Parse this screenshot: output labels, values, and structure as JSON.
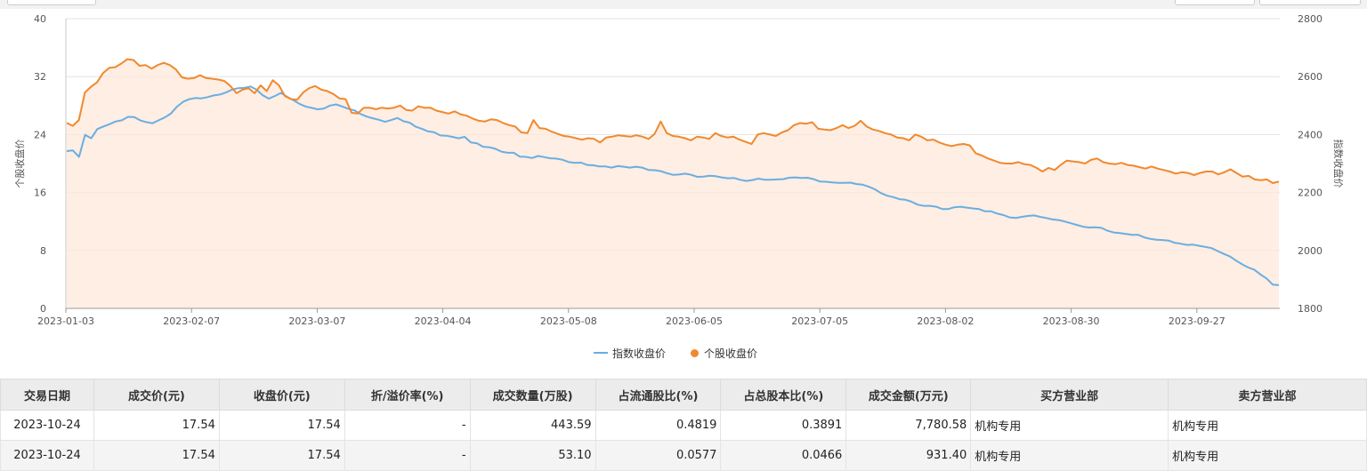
{
  "chart_data": {
    "type": "line",
    "x_ticks": [
      "2023-01-03",
      "2023-02-07",
      "2023-03-07",
      "2023-04-04",
      "2023-05-08",
      "2023-06-05",
      "2023-07-05",
      "2023-08-02",
      "2023-08-30",
      "2023-09-27"
    ],
    "left_axis": {
      "label": "个股收盘价",
      "ticks": [
        "0",
        "8",
        "16",
        "24",
        "32",
        "40"
      ],
      "ylim": [
        0,
        40
      ]
    },
    "right_axis": {
      "label": "指数收盘价",
      "ticks": [
        "1800",
        "2000",
        "2200",
        "2400",
        "2600",
        "2800"
      ],
      "ylim": [
        1800,
        2800
      ]
    },
    "series": [
      {
        "name": "指数收盘价",
        "axis": "right",
        "color": "#6aaee0",
        "values": [
          2343,
          2345,
          2323,
          2399,
          2387,
          2419,
          2428,
          2436,
          2445,
          2449,
          2461,
          2460,
          2449,
          2443,
          2439,
          2449,
          2459,
          2472,
          2496,
          2513,
          2522,
          2526,
          2525,
          2529,
          2535,
          2538,
          2545,
          2555,
          2560,
          2561,
          2566,
          2555,
          2536,
          2524,
          2533,
          2544,
          2530,
          2519,
          2506,
          2497,
          2492,
          2487,
          2490,
          2500,
          2504,
          2497,
          2489,
          2483,
          2471,
          2462,
          2456,
          2451,
          2444,
          2450,
          2457,
          2446,
          2441,
          2427,
          2420,
          2411,
          2408,
          2397,
          2396,
          2392,
          2387,
          2392,
          2373,
          2370,
          2358,
          2356,
          2351,
          2341,
          2337,
          2337,
          2324,
          2323,
          2319,
          2326,
          2322,
          2318,
          2317,
          2313,
          2305,
          2302,
          2303,
          2295,
          2294,
          2290,
          2290,
          2286,
          2291,
          2289,
          2286,
          2289,
          2286,
          2278,
          2277,
          2274,
          2267,
          2261,
          2262,
          2265,
          2261,
          2254,
          2255,
          2258,
          2256,
          2252,
          2249,
          2250,
          2244,
          2240,
          2243,
          2248,
          2244,
          2244,
          2245,
          2246,
          2251,
          2252,
          2250,
          2251,
          2246,
          2238,
          2237,
          2235,
          2233,
          2233,
          2234,
          2229,
          2227,
          2220,
          2211,
          2198,
          2189,
          2184,
          2177,
          2175,
          2168,
          2158,
          2154,
          2154,
          2151,
          2143,
          2143,
          2149,
          2151,
          2148,
          2145,
          2143,
          2135,
          2135,
          2127,
          2122,
          2114,
          2112,
          2116,
          2119,
          2121,
          2116,
          2112,
          2107,
          2105,
          2100,
          2094,
          2088,
          2082,
          2079,
          2080,
          2078,
          2068,
          2062,
          2060,
          2057,
          2054,
          2054,
          2045,
          2040,
          2037,
          2036,
          2034,
          2026,
          2023,
          2019,
          2020,
          2016,
          2012,
          2008,
          1998,
          1988,
          1979,
          1965,
          1952,
          1941,
          1933,
          1917,
          1903,
          1882,
          1880
        ]
      },
      {
        "name": "个股收盘价",
        "axis": "left",
        "color": "#f0892e",
        "values": [
          25.6,
          25.2,
          26.0,
          29.8,
          30.6,
          31.2,
          32.5,
          33.2,
          33.3,
          33.8,
          34.4,
          34.3,
          33.5,
          33.6,
          33.1,
          33.6,
          33.9,
          33.6,
          33.0,
          31.9,
          31.7,
          31.8,
          32.2,
          31.8,
          31.7,
          31.6,
          31.4,
          30.7,
          29.7,
          30.2,
          30.4,
          29.7,
          30.8,
          30.0,
          31.5,
          30.8,
          29.3,
          28.9,
          28.8,
          29.8,
          30.4,
          30.7,
          30.2,
          30.0,
          29.6,
          29.0,
          28.9,
          27.0,
          26.9,
          27.7,
          27.7,
          27.5,
          27.7,
          27.6,
          27.7,
          28.0,
          27.4,
          27.3,
          27.9,
          27.7,
          27.7,
          27.3,
          27.1,
          26.9,
          27.2,
          26.8,
          26.6,
          26.2,
          25.9,
          25.8,
          26.1,
          26.0,
          25.6,
          25.3,
          25.1,
          24.3,
          24.2,
          26.0,
          24.9,
          24.8,
          24.4,
          24.1,
          23.8,
          23.7,
          23.5,
          23.3,
          23.5,
          23.4,
          22.9,
          23.6,
          23.7,
          23.9,
          23.8,
          23.7,
          23.9,
          23.7,
          23.4,
          24.1,
          25.8,
          24.2,
          23.8,
          23.7,
          23.5,
          23.2,
          23.7,
          23.6,
          23.4,
          24.2,
          23.8,
          23.6,
          23.7,
          23.3,
          23.0,
          22.7,
          24.0,
          24.2,
          24.0,
          23.8,
          24.3,
          24.6,
          25.3,
          25.6,
          25.5,
          25.7,
          24.8,
          24.7,
          24.6,
          24.9,
          25.3,
          24.9,
          25.2,
          25.9,
          25.1,
          24.7,
          24.5,
          24.2,
          24.0,
          23.6,
          23.5,
          23.2,
          24.0,
          23.7,
          23.2,
          23.3,
          22.9,
          22.6,
          22.4,
          22.6,
          22.7,
          22.5,
          21.4,
          21.1,
          20.7,
          20.4,
          20.1,
          20.0,
          20.0,
          20.2,
          19.9,
          19.8,
          19.4,
          18.9,
          19.4,
          19.1,
          19.8,
          20.4,
          20.3,
          20.2,
          20.0,
          20.5,
          20.7,
          20.2,
          20.0,
          19.9,
          20.1,
          19.8,
          19.7,
          19.5,
          19.3,
          19.6,
          19.3,
          19.1,
          18.9,
          18.6,
          18.8,
          18.7,
          18.4,
          18.7,
          18.9,
          18.9,
          18.5,
          18.8,
          19.2,
          18.7,
          18.2,
          18.3,
          17.8,
          17.7,
          17.8,
          17.3,
          17.5
        ]
      }
    ]
  },
  "table": {
    "headers": [
      "交易日期",
      "成交价(元)",
      "收盘价(元)",
      "折/溢价率(%)",
      "成交数量(万股)",
      "占流通股比(%)",
      "占总股本比(%)",
      "成交金额(万元)",
      "买方营业部",
      "卖方营业部"
    ],
    "rows": [
      [
        "2023-10-24",
        "17.54",
        "17.54",
        "-",
        "443.59",
        "0.4819",
        "0.3891",
        "7,780.58",
        "机构专用",
        "机构专用"
      ],
      [
        "2023-10-24",
        "17.54",
        "17.54",
        "-",
        "53.10",
        "0.0577",
        "0.0466",
        "931.40",
        "机构专用",
        "机构专用"
      ]
    ]
  }
}
